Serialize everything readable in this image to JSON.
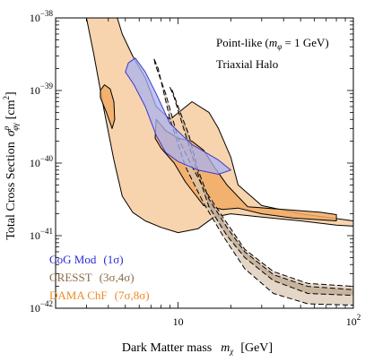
{
  "chart_data": {
    "type": "area",
    "xlabel": "Dark Matter mass",
    "xlabel_symbol": "m",
    "xlabel_symbol_sub": "χ",
    "xlabel_unit": "[GeV]",
    "ylabel": "Total Cross Section",
    "ylabel_symbol": "σ",
    "ylabel_symbol_sup": "p",
    "ylabel_symbol_sub": "φγ",
    "ylabel_unit": "[cm",
    "ylabel_unit_sup": "2",
    "ylabel_unit_end": "]",
    "x_scale": "log",
    "y_scale": "log",
    "xlim": [
      2,
      100
    ],
    "ylim": [
      1e-42,
      1e-38
    ],
    "grid": false,
    "x_major_ticks": [
      {
        "value": 10,
        "label": "10"
      },
      {
        "value": 100,
        "label": "10",
        "sup": "2"
      }
    ],
    "y_major_ticks": [
      {
        "value": 1e-38,
        "label": "10",
        "sup": "−38"
      },
      {
        "value": 1e-39,
        "label": "10",
        "sup": "−39"
      },
      {
        "value": 1e-40,
        "label": "10",
        "sup": "−40"
      },
      {
        "value": 1e-41,
        "label": "10",
        "sup": "−41"
      },
      {
        "value": 1e-42,
        "label": "10",
        "sup": "−42"
      }
    ],
    "annotations": {
      "line1_pre": "Point-like (",
      "line1_sym": "m",
      "line1_sub": "φ",
      "line1_post": " = 1 GeV)",
      "line2": "Triaxial Halo"
    },
    "legend": [
      {
        "name": "CoG Mod",
        "detail": "(1σ)",
        "color": "#2a2ad8"
      },
      {
        "name": "CRESST",
        "detail": "(3σ,4σ)",
        "color": "#8c6a48"
      },
      {
        "name": "DAMA ChF",
        "detail": "(7σ,8σ)",
        "color": "#ef8a24"
      }
    ],
    "legend_position": "bottom-left",
    "series": [
      {
        "name": "DAMA ChF",
        "level": "8σ",
        "fill": "#f6cda0",
        "stroke": "#000000",
        "dashed": false,
        "points": [
          [
            3.0,
            1e-38
          ],
          [
            3.3,
            3.2e-39
          ],
          [
            3.8,
            5e-40
          ],
          [
            4.3,
            1.1e-40
          ],
          [
            4.8,
            3.5e-41
          ],
          [
            5.5,
            2.1e-41
          ],
          [
            6.5,
            1.6e-41
          ],
          [
            8.0,
            1.3e-41
          ],
          [
            10,
            1.1e-41
          ],
          [
            13,
            1.25e-41
          ],
          [
            16,
            1.8e-41
          ],
          [
            20,
            2e-41
          ],
          [
            30,
            1.8e-41
          ],
          [
            50,
            1.6e-41
          ],
          [
            80,
            1.4e-41
          ],
          [
            100,
            1.35e-41
          ],
          [
            100,
            1.6e-41
          ],
          [
            50,
            2e-41
          ],
          [
            30,
            2.6e-41
          ],
          [
            22,
            5e-41
          ],
          [
            20,
            1.2e-40
          ],
          [
            17,
            3e-40
          ],
          [
            15,
            5e-40
          ],
          [
            12,
            7e-40
          ],
          [
            9,
            4e-40
          ],
          [
            7.5,
            6e-40
          ],
          [
            6.5,
            1.5e-39
          ],
          [
            5.5,
            3e-39
          ],
          [
            4.8,
            6e-39
          ],
          [
            4.5,
            1e-38
          ]
        ]
      },
      {
        "name": "DAMA ChF",
        "level": "7σ",
        "fill": "#f2aa64",
        "stroke": "#000000",
        "dashed": false,
        "points": [
          [
            7.5,
            4e-40
          ],
          [
            8.5,
            2.8e-40
          ],
          [
            10,
            2.2e-40
          ],
          [
            12,
            2e-40
          ],
          [
            14,
            1.5e-40
          ],
          [
            16,
            9e-41
          ],
          [
            19,
            5e-41
          ],
          [
            25,
            2.5e-41
          ],
          [
            40,
            2.3e-41
          ],
          [
            65,
            2.1e-41
          ],
          [
            80,
            1.95e-41
          ],
          [
            80,
            1.6e-41
          ],
          [
            45,
            1.75e-41
          ],
          [
            30,
            2e-41
          ],
          [
            22,
            2.4e-41
          ],
          [
            18,
            2.3e-41
          ],
          [
            14,
            2.6e-41
          ],
          [
            11,
            5.5e-41
          ],
          [
            9.5,
            1e-40
          ],
          [
            8,
            1.6e-40
          ],
          [
            7.4,
            2.2e-40
          ]
        ]
      },
      {
        "name": "DAMA ChF",
        "level": "7σ",
        "fill": "#f2aa64",
        "stroke": "#000000",
        "dashed": false,
        "points": [
          [
            3.6,
            8e-40
          ],
          [
            3.9,
            5e-40
          ],
          [
            4.2,
            3e-40
          ],
          [
            4.35,
            4e-40
          ],
          [
            4.3,
            7e-40
          ],
          [
            4.1,
            1.05e-39
          ],
          [
            3.8,
            1.2e-39
          ],
          [
            3.6,
            1e-39
          ]
        ]
      },
      {
        "name": "CRESST",
        "level": "4σ",
        "fill": "#d8c6b0",
        "stroke": "#000000",
        "dashed": true,
        "points": [
          [
            7.3,
            2.7e-39
          ],
          [
            7.7,
            2e-39
          ],
          [
            9,
            4e-40
          ],
          [
            11,
            9e-41
          ],
          [
            14,
            2.8e-41
          ],
          [
            18,
            1e-41
          ],
          [
            24,
            3.5e-42
          ],
          [
            35,
            1.6e-42
          ],
          [
            55,
            1.15e-42
          ],
          [
            100,
            1.1e-42
          ],
          [
            100,
            2e-42
          ],
          [
            55,
            2.2e-42
          ],
          [
            35,
            3.2e-42
          ],
          [
            24,
            6.5e-42
          ],
          [
            18,
            1.8e-41
          ],
          [
            14,
            4.5e-41
          ],
          [
            12,
            9e-41
          ],
          [
            10,
            2.2e-40
          ],
          [
            8.5,
            9e-40
          ],
          [
            7.4,
            2.3e-39
          ]
        ]
      },
      {
        "name": "CRESST",
        "level": "3σ",
        "fill": "#bca48a",
        "stroke": "#000000",
        "dashed": true,
        "points": [
          [
            9,
            1.1e-39
          ],
          [
            9.5,
            8e-40
          ],
          [
            11,
            2.5e-40
          ],
          [
            13,
            7e-41
          ],
          [
            15,
            2.5e-41
          ],
          [
            19,
            1e-41
          ],
          [
            24,
            5e-42
          ],
          [
            35,
            2.4e-42
          ],
          [
            55,
            1.6e-42
          ],
          [
            100,
            1.5e-42
          ],
          [
            100,
            1.8e-42
          ],
          [
            55,
            2e-42
          ],
          [
            35,
            2.9e-42
          ],
          [
            24,
            6e-42
          ],
          [
            19,
            1.3e-41
          ],
          [
            15,
            3.2e-41
          ],
          [
            13,
            8e-41
          ],
          [
            11.5,
            2.5e-40
          ],
          [
            10,
            6e-40
          ],
          [
            9.2,
            1.05e-39
          ]
        ]
      },
      {
        "name": "CoG Mod",
        "level": "1σ",
        "fill": "#aab3f0",
        "stroke": "#3a3ad0",
        "dashed": false,
        "points": [
          [
            5.0,
            1.8e-39
          ],
          [
            5.6,
            1.2e-39
          ],
          [
            6.5,
            6e-40
          ],
          [
            7.5,
            2.4e-40
          ],
          [
            8.5,
            1.4e-40
          ],
          [
            10,
            1.05e-40
          ],
          [
            13,
            8e-41
          ],
          [
            17,
            7e-41
          ],
          [
            20,
            8e-41
          ],
          [
            17,
            1.1e-40
          ],
          [
            12,
            1.8e-40
          ],
          [
            9,
            3.5e-40
          ],
          [
            7.5,
            9e-40
          ],
          [
            6.5,
            1.8e-39
          ],
          [
            5.7,
            2.8e-39
          ],
          [
            5.2,
            2.4e-39
          ]
        ]
      }
    ]
  }
}
